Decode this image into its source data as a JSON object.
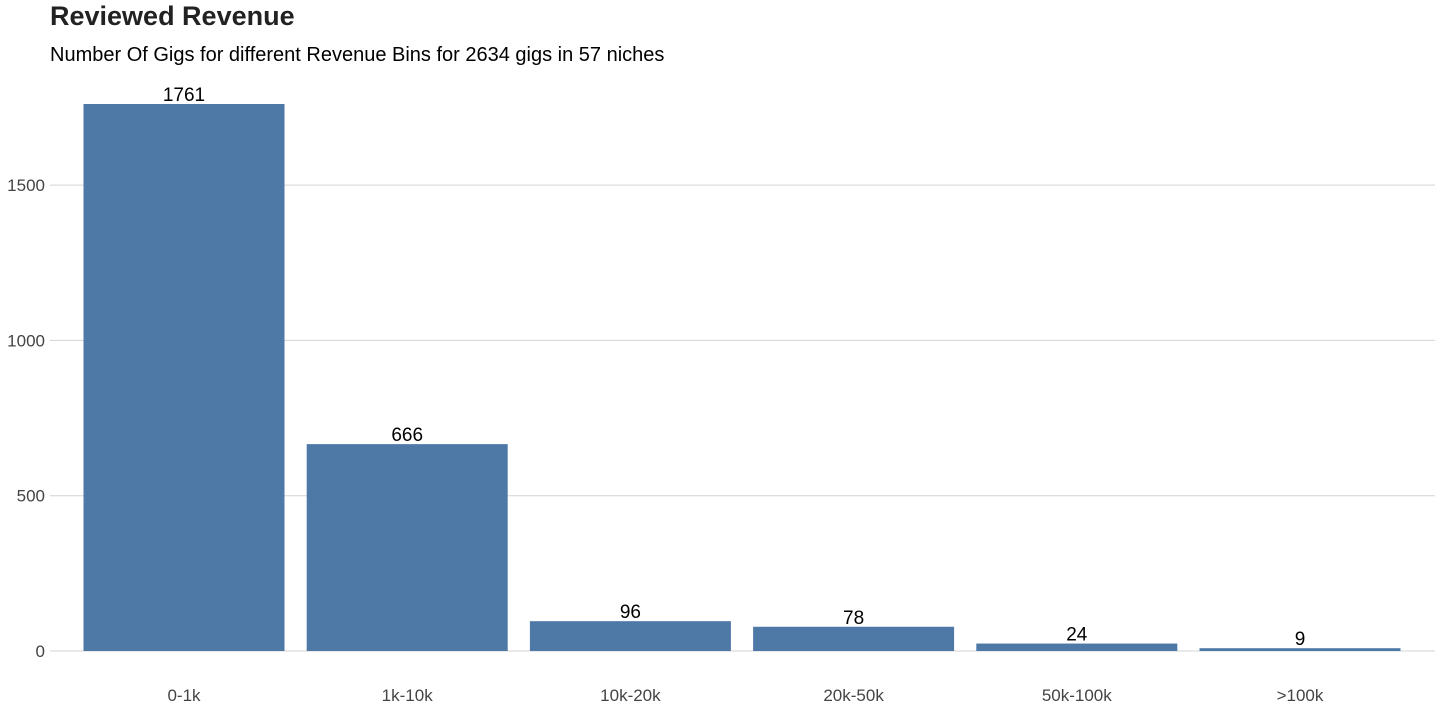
{
  "chart_data": {
    "type": "bar",
    "title": "Reviewed Revenue",
    "subtitle": "Number Of Gigs for different Revenue Bins for 2634 gigs in 57 niches",
    "xlabel": "",
    "ylabel": "",
    "categories": [
      "0-1k",
      "1k-10k",
      "10k-20k",
      "20k-50k",
      "50k-100k",
      ">100k"
    ],
    "values": [
      1761,
      666,
      96,
      78,
      24,
      9
    ],
    "data_labels": [
      "1761",
      "666",
      "96",
      "78",
      "24",
      "9"
    ],
    "y_ticks": [
      0,
      500,
      1000,
      1500
    ],
    "y_tick_labels": [
      "0",
      "500",
      "1000",
      "1500"
    ],
    "ylim": [
      0,
      1761
    ],
    "grid": "horizontal",
    "legend": "none",
    "colors": {
      "bar": "#4e79a7",
      "grid": "#d3d3d3",
      "tick_text": "#444444",
      "label_text": "#000000"
    }
  }
}
